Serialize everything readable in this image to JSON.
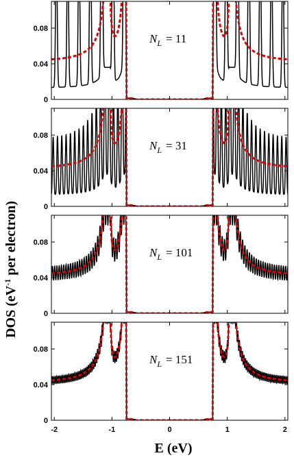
{
  "chart_data": {
    "type": "line",
    "xlabel": "E (eV)",
    "ylabel_main": "DOS (eV",
    "ylabel_sup": "-1",
    "ylabel_rest": " per electron)",
    "xticks": [
      -2,
      -1,
      0,
      1,
      2
    ],
    "xtick_labels": [
      "-2",
      "-1",
      "0",
      "1",
      "2"
    ],
    "xlim": [
      -2.05,
      2.05
    ],
    "yticks": [
      0,
      0.04,
      0.08
    ],
    "ytick_labels": [
      "0",
      "0.04",
      "0.08"
    ],
    "ylim": [
      0,
      0.11
    ],
    "line_colors": {
      "finite": "#000000",
      "reference": "#e00000"
    },
    "line_styles": {
      "finite": "solid",
      "reference": "dashed"
    },
    "panels": [
      {
        "label_base": "N",
        "label_sub": "L",
        "label_value": "= 11",
        "n": 11
      },
      {
        "label_base": "N",
        "label_sub": "L",
        "label_value": "= 31",
        "n": 31
      },
      {
        "label_base": "N",
        "label_sub": "L",
        "label_value": "= 101",
        "n": 101
      },
      {
        "label_base": "N",
        "label_sub": "L",
        "label_value": "= 151",
        "n": 151
      }
    ]
  }
}
